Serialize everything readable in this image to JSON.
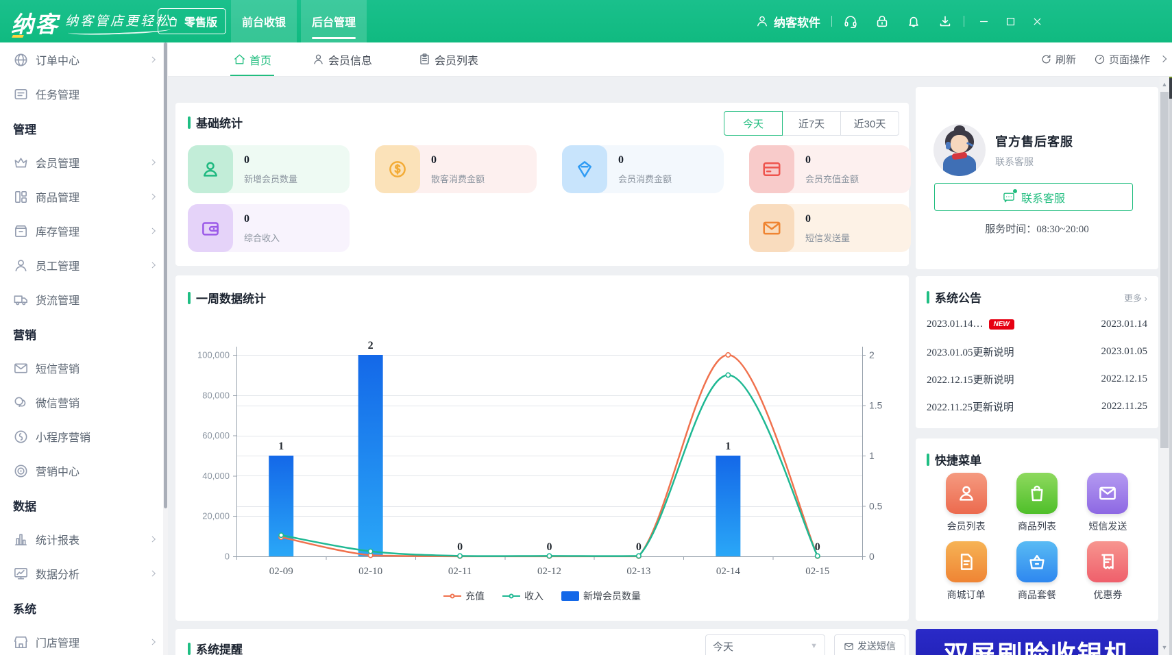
{
  "topbar": {
    "logo": "纳客",
    "slogan": "纳客管店更轻松",
    "edition": "零售版",
    "nav": [
      {
        "label": "前台收银",
        "active": false
      },
      {
        "label": "后台管理",
        "active": true
      }
    ],
    "account": "纳客软件",
    "accent_color": "#10ba80"
  },
  "tabbar": {
    "tabs": [
      {
        "label": "首页",
        "icon": "home-icon",
        "active": true
      },
      {
        "label": "会员信息",
        "icon": "person-icon",
        "active": false
      },
      {
        "label": "会员列表",
        "icon": "clipboard-icon",
        "active": false
      }
    ],
    "refresh": "刷新",
    "page_ops": "页面操作"
  },
  "sidebar": {
    "items": [
      {
        "type": "item",
        "label": "订单中心",
        "icon": "globe",
        "arrow": true
      },
      {
        "type": "item",
        "label": "任务管理",
        "icon": "tasks",
        "arrow": false
      },
      {
        "type": "section",
        "label": "管理"
      },
      {
        "type": "item",
        "label": "会员管理",
        "icon": "crown",
        "arrow": true
      },
      {
        "type": "item",
        "label": "商品管理",
        "icon": "goods",
        "arrow": true
      },
      {
        "type": "item",
        "label": "库存管理",
        "icon": "box",
        "arrow": true
      },
      {
        "type": "item",
        "label": "员工管理",
        "icon": "user",
        "arrow": true
      },
      {
        "type": "item",
        "label": "货流管理",
        "icon": "truck",
        "arrow": false
      },
      {
        "type": "section",
        "label": "营销"
      },
      {
        "type": "item",
        "label": "短信营销",
        "icon": "mail",
        "arrow": false
      },
      {
        "type": "item",
        "label": "微信营销",
        "icon": "wechat",
        "arrow": false
      },
      {
        "type": "item",
        "label": "小程序营销",
        "icon": "mini",
        "arrow": false
      },
      {
        "type": "item",
        "label": "营销中心",
        "icon": "target",
        "arrow": false
      },
      {
        "type": "section",
        "label": "数据"
      },
      {
        "type": "item",
        "label": "统计报表",
        "icon": "barchart",
        "arrow": true
      },
      {
        "type": "item",
        "label": "数据分析",
        "icon": "monitor",
        "arrow": true
      },
      {
        "type": "section",
        "label": "系统"
      },
      {
        "type": "item",
        "label": "门店管理",
        "icon": "store",
        "arrow": true
      }
    ]
  },
  "stats": {
    "title": "基础统计",
    "filters": [
      {
        "label": "今天",
        "active": true
      },
      {
        "label": "近7天",
        "active": false
      },
      {
        "label": "近30天",
        "active": false
      }
    ],
    "items": [
      {
        "label": "新增会员数量",
        "value": "0",
        "icon": "member",
        "color": "#1eb980",
        "tile": "#c2edd8",
        "bg": "#eefaf3",
        "col": 1,
        "row": 1
      },
      {
        "label": "散客消费金额",
        "value": "0",
        "icon": "coin",
        "color": "#f3ab35",
        "tile": "#fbe2b9",
        "bg": "#fdf0ef",
        "col": 2,
        "row": 1
      },
      {
        "label": "会员消费金额",
        "value": "0",
        "icon": "diamond",
        "color": "#2f9bf4",
        "tile": "#c8e4fc",
        "bg": "#f3f8fd",
        "col": 3,
        "row": 1
      },
      {
        "label": "会员充值金额",
        "value": "0",
        "icon": "card",
        "color": "#ee544d",
        "tile": "#f8cbca",
        "bg": "#fdf0ef",
        "col": 4,
        "row": 1
      },
      {
        "label": "综合收入",
        "value": "0",
        "icon": "wallet",
        "color": "#9b59e8",
        "tile": "#e5d3f9",
        "bg": "#f8f3fd",
        "col": 1,
        "row": 2
      },
      {
        "label": "短信发送量",
        "value": "0",
        "icon": "mailstat",
        "color": "#ef8432",
        "tile": "#f9dcbe",
        "bg": "#fdf2e6",
        "col": 4,
        "row": 2
      }
    ]
  },
  "chart_data": {
    "type": "bar+line",
    "title": "一周数据统计",
    "categories": [
      "02-09",
      "02-10",
      "02-11",
      "02-12",
      "02-13",
      "02-14",
      "02-15"
    ],
    "series": [
      {
        "name": "充值",
        "type": "line",
        "color": "#f0714d",
        "y_axis": "left",
        "values": [
          9500,
          500,
          50,
          50,
          50,
          100000,
          50
        ]
      },
      {
        "name": "收入",
        "type": "line",
        "color": "#1fb893",
        "y_axis": "left",
        "values": [
          10500,
          2500,
          200,
          200,
          200,
          90000,
          200
        ]
      },
      {
        "name": "新增会员数量",
        "type": "bar",
        "color_top": "#1468e8",
        "color_bottom": "#2aa7f7",
        "y_axis": "right",
        "values": [
          1,
          2,
          0,
          0,
          0,
          1,
          0
        ],
        "labels": [
          "1",
          "2",
          "0",
          "0",
          "0",
          "1",
          "0"
        ]
      }
    ],
    "left_axis": {
      "max": 100000,
      "ticks": [
        "0",
        "20,000",
        "40,000",
        "60,000",
        "80,000",
        "100,000"
      ]
    },
    "right_axis": {
      "max": 2,
      "ticks": [
        "0",
        "0.5",
        "1",
        "1.5",
        "2"
      ]
    },
    "grid": true,
    "legend_position": "bottom"
  },
  "service": {
    "title": "官方售后客服",
    "subtitle": "联系客服",
    "button": "联系客服",
    "hours": "服务时间：08:30~20:00"
  },
  "announcements": {
    "title": "系统公告",
    "more": "更多",
    "badge_label": "NEW",
    "badge_color": "#e60012",
    "items": [
      {
        "text": "2023.01.14…",
        "badge": true,
        "date": "2023.01.14"
      },
      {
        "text": "2023.01.05更新说明",
        "badge": false,
        "date": "2023.01.05"
      },
      {
        "text": "2022.12.15更新说明",
        "badge": false,
        "date": "2022.12.15"
      },
      {
        "text": "2022.11.25更新说明",
        "badge": false,
        "date": "2022.11.25"
      }
    ]
  },
  "quickmenu": {
    "title": "快捷菜单",
    "items": [
      {
        "label": "会员列表",
        "icon": "qperson",
        "g1": "#f59a80",
        "g2": "#ec6a4e"
      },
      {
        "label": "商品列表",
        "icon": "qbag",
        "g1": "#8ed95e",
        "g2": "#4fbf2a"
      },
      {
        "label": "短信发送",
        "icon": "qmail",
        "g1": "#b49af1",
        "g2": "#8d68e3"
      },
      {
        "label": "商城订单",
        "icon": "qdoc",
        "g1": "#f6b355",
        "g2": "#ef8434"
      },
      {
        "label": "商品套餐",
        "icon": "qbasket",
        "g1": "#59bbf4",
        "g2": "#2e87ef"
      },
      {
        "label": "优惠券",
        "icon": "qticket",
        "g1": "#f7958f",
        "g2": "#ef5f6b"
      }
    ]
  },
  "reminder": {
    "title": "系统提醒",
    "range": "今天",
    "send": "发送短信"
  },
  "banner": {
    "text": "双屏刷脸收银机",
    "bg": "#2a2ac8"
  }
}
